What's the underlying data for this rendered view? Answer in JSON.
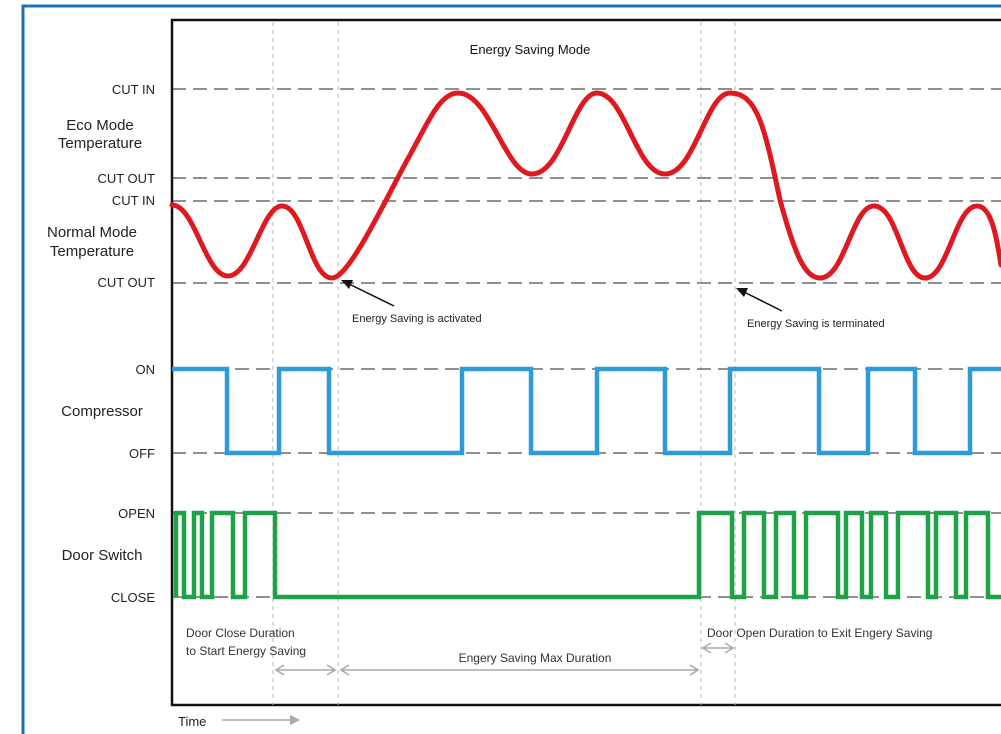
{
  "diagram": {
    "title": "Energy Saving Mode",
    "levels": {
      "eco_cut_in": "CUT IN",
      "eco_cut_out": "CUT OUT",
      "normal_cut_in": "CUT IN",
      "normal_cut_out": "CUT OUT",
      "comp_on": "ON",
      "comp_off": "OFF",
      "door_open": "OPEN",
      "door_close": "CLOSE"
    },
    "groups": {
      "eco_line1": "Eco Mode",
      "eco_line2": "Temperature",
      "normal_line1": "Normal Mode",
      "normal_line2": "Temperature",
      "compressor": "Compressor",
      "door": "Door Switch"
    },
    "annotations": {
      "activated": "Energy Saving is activated",
      "terminated": "Energy Saving is terminated"
    },
    "durations": {
      "close_line1": "Door Close Duration",
      "close_line2": "to Start Energy Saving",
      "max": "Engery Saving Max Duration",
      "open_exit": "Door Open Duration to Exit Engery Saving"
    },
    "time_label": "Time",
    "colors": {
      "frame": "#1f6fb2",
      "temperature": "#e0181f",
      "compressor": "#2f9ad8",
      "door": "#1fa247",
      "guide": "#b8b8b8",
      "arrow": "#aaaaaa"
    }
  }
}
